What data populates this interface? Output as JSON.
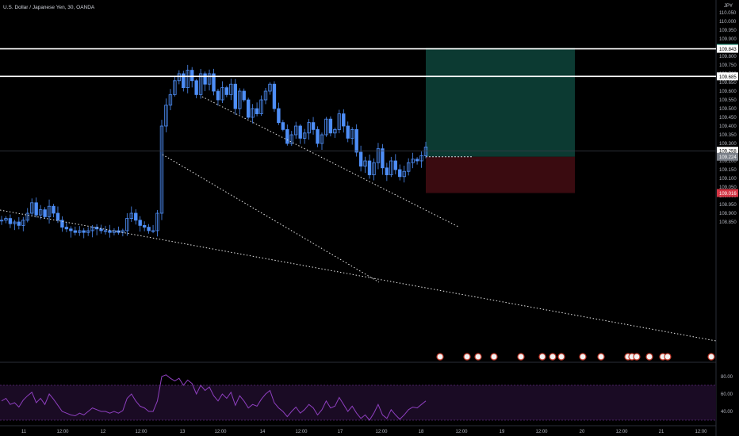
{
  "header": {
    "title": "U.S. Dollar / Japanese Yen, 30, OANDA",
    "currency": "JPY"
  },
  "colors": {
    "background": "#000000",
    "candle": "#4e8ef7",
    "level_line": "#ffffff",
    "profit_zone": "#0c3a32",
    "loss_zone": "#3a0b10",
    "rsi_line": "#8e3fbf",
    "rsi_band": "#1a0b24"
  },
  "price_axis": {
    "ticks": [
      "110.050",
      "110.000",
      "109.950",
      "109.900",
      "109.850",
      "109.800",
      "109.750",
      "109.700",
      "109.650",
      "109.600",
      "109.550",
      "109.500",
      "109.450",
      "109.400",
      "109.350",
      "109.300",
      "109.250",
      "109.200",
      "109.150",
      "109.100",
      "109.050",
      "109.000",
      "108.950",
      "108.900",
      "108.850"
    ],
    "labels": [
      {
        "text": "109.848",
        "kind": "target"
      },
      {
        "text": "109.843",
        "kind": "level"
      },
      {
        "text": "109.685",
        "kind": "level"
      },
      {
        "text": "109.258",
        "kind": "current"
      },
      {
        "text": "109.224",
        "kind": "entry"
      },
      {
        "text": "109.016",
        "kind": "stop"
      }
    ]
  },
  "rsi_axis": {
    "ticks": [
      "80.00",
      "60.00",
      "40.00"
    ]
  },
  "time_axis": {
    "ticks": [
      "11",
      "12:00",
      "12",
      "12:00",
      "13",
      "12:00",
      "14",
      "12:00",
      "17",
      "12:00",
      "18",
      "12:00",
      "19",
      "12:00",
      "20",
      "12:00",
      "21",
      "12:00"
    ]
  },
  "chart_data": {
    "type": "candlestick",
    "symbol": "U.S. Dollar / Japanese Yen",
    "timeframe": "30",
    "source": "OANDA",
    "ylim": [
      108.82,
      110.06
    ],
    "horizontal_levels": [
      109.843,
      109.685
    ],
    "current_price": 109.258,
    "position": {
      "entry": 109.224,
      "target": 109.848,
      "stop": 109.016
    },
    "price_path": [
      108.86,
      108.87,
      108.84,
      108.85,
      108.83,
      108.86,
      108.9,
      108.96,
      108.89,
      108.92,
      108.88,
      108.94,
      108.9,
      108.86,
      108.82,
      108.81,
      108.8,
      108.79,
      108.8,
      108.79,
      108.8,
      108.82,
      108.81,
      108.8,
      108.8,
      108.79,
      108.8,
      108.79,
      108.8,
      108.87,
      108.9,
      108.86,
      108.83,
      108.82,
      108.8,
      108.8,
      108.9,
      109.4,
      109.52,
      109.58,
      109.66,
      109.7,
      109.62,
      109.72,
      109.66,
      109.58,
      109.7,
      109.64,
      109.7,
      109.6,
      109.55,
      109.62,
      109.58,
      109.64,
      109.5,
      109.6,
      109.55,
      109.45,
      109.5,
      109.47,
      109.55,
      109.6,
      109.64,
      109.5,
      109.42,
      109.38,
      109.3,
      109.35,
      109.4,
      109.33,
      109.36,
      109.42,
      109.38,
      109.3,
      109.35,
      109.44,
      109.36,
      109.38,
      109.47,
      109.4,
      109.33,
      109.38,
      109.25,
      109.17,
      109.2,
      109.12,
      109.19,
      109.27,
      109.16,
      109.12,
      109.2,
      109.15,
      109.11,
      109.14,
      109.19,
      109.21,
      109.2,
      109.23,
      109.28
    ],
    "rsi_values": [
      52,
      55,
      48,
      50,
      45,
      53,
      58,
      62,
      50,
      55,
      48,
      60,
      54,
      47,
      40,
      38,
      36,
      35,
      38,
      36,
      40,
      44,
      42,
      40,
      40,
      38,
      40,
      38,
      41,
      55,
      60,
      52,
      46,
      44,
      40,
      40,
      52,
      80,
      82,
      78,
      75,
      78,
      70,
      76,
      72,
      60,
      70,
      64,
      68,
      58,
      52,
      60,
      55,
      62,
      47,
      58,
      52,
      44,
      48,
      46,
      54,
      60,
      64,
      50,
      44,
      40,
      34,
      40,
      45,
      38,
      42,
      48,
      44,
      36,
      42,
      52,
      44,
      46,
      56,
      48,
      40,
      46,
      38,
      32,
      36,
      30,
      38,
      48,
      36,
      32,
      42,
      36,
      31,
      36,
      42,
      45,
      44,
      48,
      52
    ]
  }
}
